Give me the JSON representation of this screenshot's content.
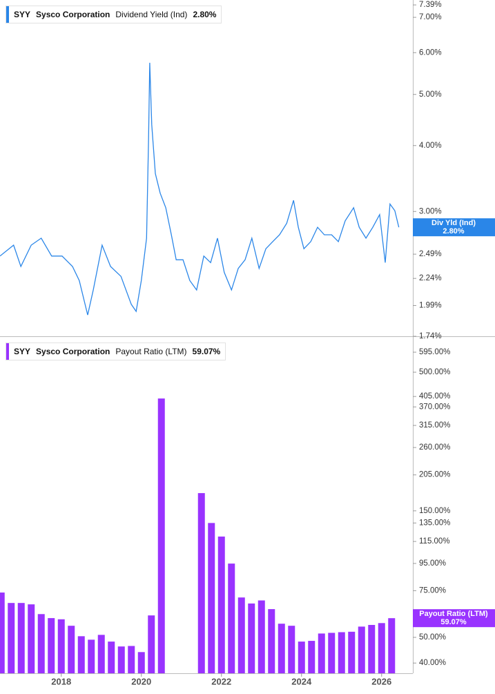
{
  "chart_data": [
    {
      "type": "line",
      "ticker": "SYY",
      "company": "Sysco Corporation",
      "axis_tag": "Div Yld (Ind)",
      "last_label": "2.80%",
      "log_scale": true,
      "xlim": [
        2016.47,
        2026.78
      ],
      "ylim": [
        1.74,
        7.55
      ],
      "yticks": [
        {
          "value": 7.39,
          "label": "7.39%"
        },
        {
          "value": 7,
          "label": "7.00%"
        },
        {
          "value": 6,
          "label": "6.00%"
        },
        {
          "value": 5,
          "label": "5.00%"
        },
        {
          "value": 4,
          "label": "4.00%"
        },
        {
          "value": 3,
          "label": "3.00%"
        },
        {
          "value": 2.49,
          "label": "2.49%"
        },
        {
          "value": 2.24,
          "label": "2.24%"
        },
        {
          "value": 1.99,
          "label": "1.99%"
        },
        {
          "value": 1.74,
          "label": "1.74%"
        }
      ],
      "x": [
        2016.47,
        2016.81,
        2016.99,
        2017.25,
        2017.5,
        2017.76,
        2018.02,
        2018.28,
        2018.45,
        2018.66,
        2018.8,
        2019.02,
        2019.23,
        2019.49,
        2019.75,
        2019.87,
        2020.0,
        2020.13,
        2020.18,
        2020.21,
        2020.26,
        2020.35,
        2020.47,
        2020.61,
        2020.75,
        2020.87,
        2021.04,
        2021.21,
        2021.38,
        2021.56,
        2021.73,
        2021.9,
        2022.07,
        2022.25,
        2022.42,
        2022.59,
        2022.76,
        2022.94,
        2023.11,
        2023.28,
        2023.45,
        2023.63,
        2023.8,
        2023.92,
        2024.06,
        2024.23,
        2024.4,
        2024.57,
        2024.75,
        2024.92,
        2025.09,
        2025.3,
        2025.44,
        2025.61,
        2025.78,
        2025.95,
        2026.09,
        2026.21,
        2026.33,
        2026.43
      ],
      "series": [
        {
          "name": "Dividend Yield (Ind)",
          "color": "#2a86e8",
          "values": [
            2.47,
            2.59,
            2.36,
            2.59,
            2.67,
            2.47,
            2.47,
            2.36,
            2.22,
            1.91,
            2.13,
            2.59,
            2.36,
            2.26,
            2.0,
            1.94,
            2.22,
            2.67,
            4.13,
            5.74,
            4.38,
            3.54,
            3.25,
            3.05,
            2.71,
            2.43,
            2.43,
            2.22,
            2.13,
            2.47,
            2.4,
            2.67,
            2.3,
            2.13,
            2.34,
            2.43,
            2.67,
            2.34,
            2.55,
            2.63,
            2.71,
            2.85,
            3.15,
            2.8,
            2.55,
            2.63,
            2.8,
            2.71,
            2.71,
            2.63,
            2.88,
            3.05,
            2.8,
            2.67,
            2.8,
            2.96,
            2.4,
            3.1,
            3.01,
            2.8
          ]
        }
      ]
    },
    {
      "type": "bar",
      "ticker": "SYY",
      "company": "Sysco Corporation",
      "last_label": "59.07%",
      "log_scale": true,
      "xlim": [
        2016.47,
        2026.78
      ],
      "ylim": [
        36.6,
        679
      ],
      "xticks": [
        2018,
        2020,
        2022,
        2024,
        2026
      ],
      "yticks": [
        {
          "value": 595,
          "label": "595.00%"
        },
        {
          "value": 500,
          "label": "500.00%"
        },
        {
          "value": 405,
          "label": "405.00%"
        },
        {
          "value": 370,
          "label": "370.00%"
        },
        {
          "value": 315,
          "label": "315.00%"
        },
        {
          "value": 260,
          "label": "260.00%"
        },
        {
          "value": 205,
          "label": "205.00%"
        },
        {
          "value": 150,
          "label": "150.00%"
        },
        {
          "value": 135,
          "label": "135.00%"
        },
        {
          "value": 115,
          "label": "115.00%"
        },
        {
          "value": 95,
          "label": "95.00%"
        },
        {
          "value": 75,
          "label": "75.00%"
        },
        {
          "value": 50,
          "label": "50.00%"
        },
        {
          "value": 40,
          "label": "40.00%"
        }
      ],
      "x": [
        2016.5,
        2016.75,
        2017.0,
        2017.25,
        2017.5,
        2017.75,
        2018.0,
        2018.25,
        2018.5,
        2018.75,
        2019.0,
        2019.25,
        2019.5,
        2019.75,
        2020.0,
        2020.25,
        2020.5,
        2020.75,
        2021.0,
        2021.25,
        2021.5,
        2021.75,
        2022.0,
        2022.25,
        2022.5,
        2022.75,
        2023.0,
        2023.25,
        2023.5,
        2023.75,
        2024.0,
        2024.25,
        2024.5,
        2024.75,
        2025.0,
        2025.25,
        2025.5,
        2025.75,
        2026.0,
        2026.25
      ],
      "series": [
        {
          "name": "Payout Ratio (LTM)",
          "color": "#9933ff",
          "values": [
            73.8,
            67.4,
            67.4,
            66.6,
            61.2,
            59.1,
            58.5,
            55.3,
            50.5,
            49.0,
            51.1,
            48.2,
            46.2,
            46.4,
            44.0,
            60.5,
            398,
            null,
            null,
            null,
            175,
            135,
            120,
            94.9,
            70.7,
            67.1,
            68.9,
            63.9,
            56.3,
            55.3,
            48.2,
            48.5,
            51.7,
            52.0,
            52.3,
            52.5,
            54.9,
            55.7,
            56.6,
            59.07
          ]
        }
      ]
    }
  ]
}
